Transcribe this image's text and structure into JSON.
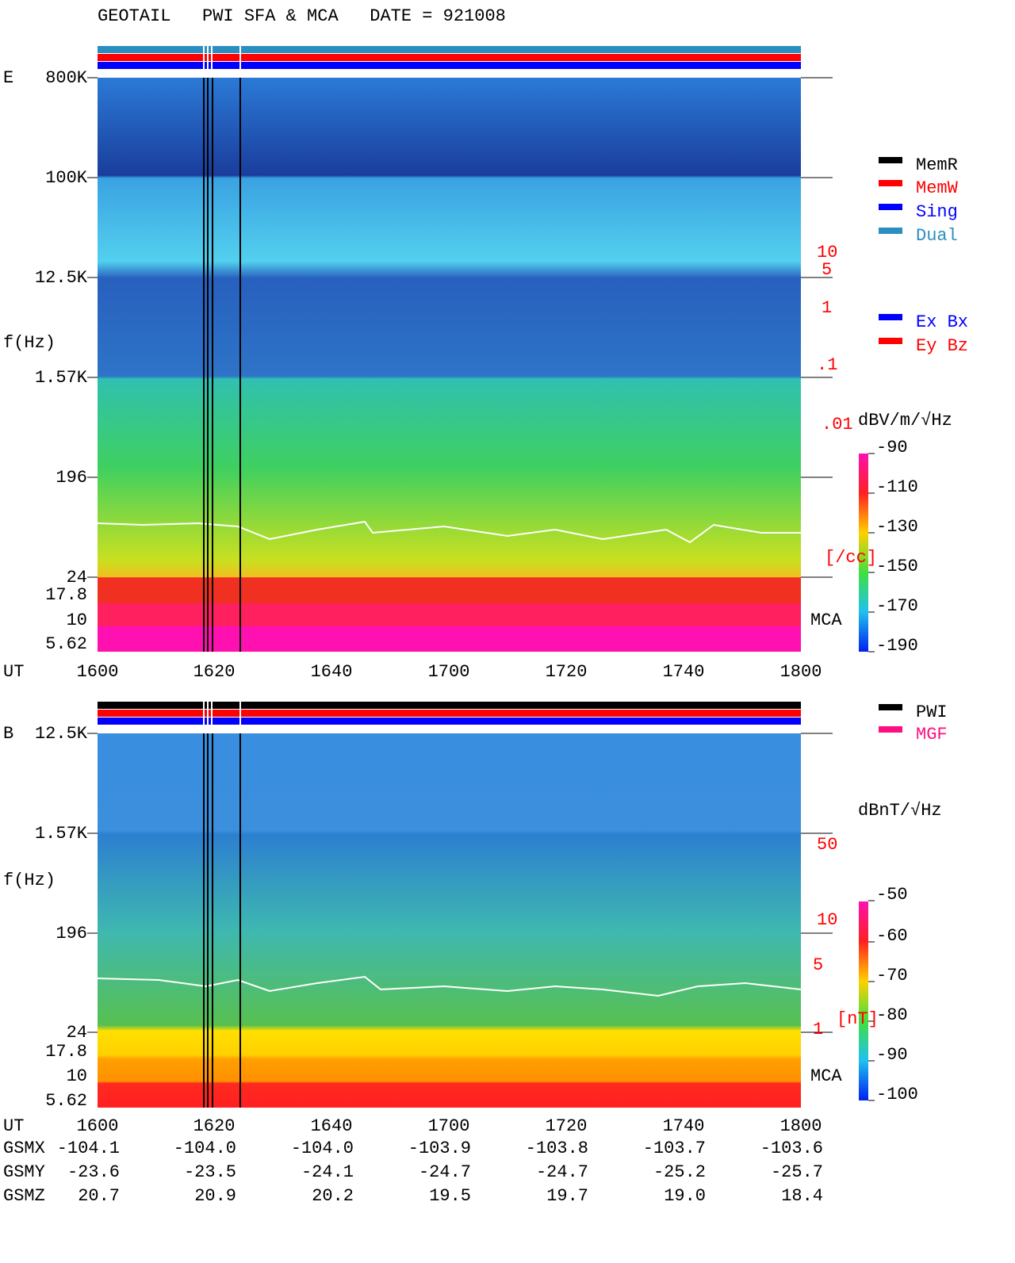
{
  "header": "GEOTAIL   PWI SFA & MCA   DATE = 921008",
  "panels": [
    {
      "label": "E",
      "axis_label": "f(Hz)",
      "freq_ticks": [
        "800K",
        "100K",
        "12.5K",
        "1.57K",
        "196",
        "24",
        "17.8",
        "10",
        "5.62"
      ],
      "time_label": "UT",
      "time_ticks": [
        "1600",
        "1620",
        "1640",
        "1700",
        "1720",
        "1740",
        "1800"
      ],
      "colorbar_unit": "dBV/m/√Hz",
      "colorbar_ticks": [
        "-90",
        "-110",
        "-130",
        "-150",
        "-170",
        "-190"
      ],
      "side_ticks": [
        "10",
        "5",
        "1",
        ".1",
        ".01"
      ],
      "side_unit": "[/cc]",
      "mca": "MCA"
    },
    {
      "label": "B",
      "axis_label": "f(Hz)",
      "freq_ticks": [
        "12.5K",
        "1.57K",
        "196",
        "24",
        "17.8",
        "10",
        "5.62"
      ],
      "time_label": "UT",
      "time_ticks": [
        "1600",
        "1620",
        "1640",
        "1700",
        "1720",
        "1740",
        "1800"
      ],
      "colorbar_unit": "dBnT/√Hz",
      "colorbar_ticks": [
        "-50",
        "-60",
        "-70",
        "-80",
        "-90",
        "-100"
      ],
      "side_ticks": [
        "50",
        "10",
        "5",
        "1"
      ],
      "side_unit": "[nT]",
      "mca": "MCA"
    }
  ],
  "legend_mode": [
    {
      "name": "MemR",
      "color": "#000000"
    },
    {
      "name": "MemW",
      "color": "#ff0000"
    },
    {
      "name": "Sing",
      "color": "#0000ff"
    },
    {
      "name": "Dual",
      "color": "#2a8fc0"
    }
  ],
  "legend_sensor": [
    {
      "name": "Ex Bx",
      "color": "#0000ff"
    },
    {
      "name": "Ey Bz",
      "color": "#ff0000"
    }
  ],
  "legend_source": [
    {
      "name": "PWI",
      "color": "#000000"
    },
    {
      "name": "MGF",
      "color": "#ff1080"
    }
  ],
  "orbit": [
    {
      "label": "GSMX",
      "values": [
        "-104.1",
        "-104.0",
        "-104.0",
        "-103.9",
        "-103.8",
        "-103.7",
        "-103.6"
      ]
    },
    {
      "label": "GSMY",
      "values": [
        "-23.6",
        "-23.5",
        "-24.1",
        "-24.7",
        "-24.7",
        "-25.2",
        "-25.7"
      ]
    },
    {
      "label": "GSMZ",
      "values": [
        "20.7",
        "20.9",
        "20.2",
        "19.5",
        "19.7",
        "19.0",
        "18.4"
      ]
    }
  ]
}
